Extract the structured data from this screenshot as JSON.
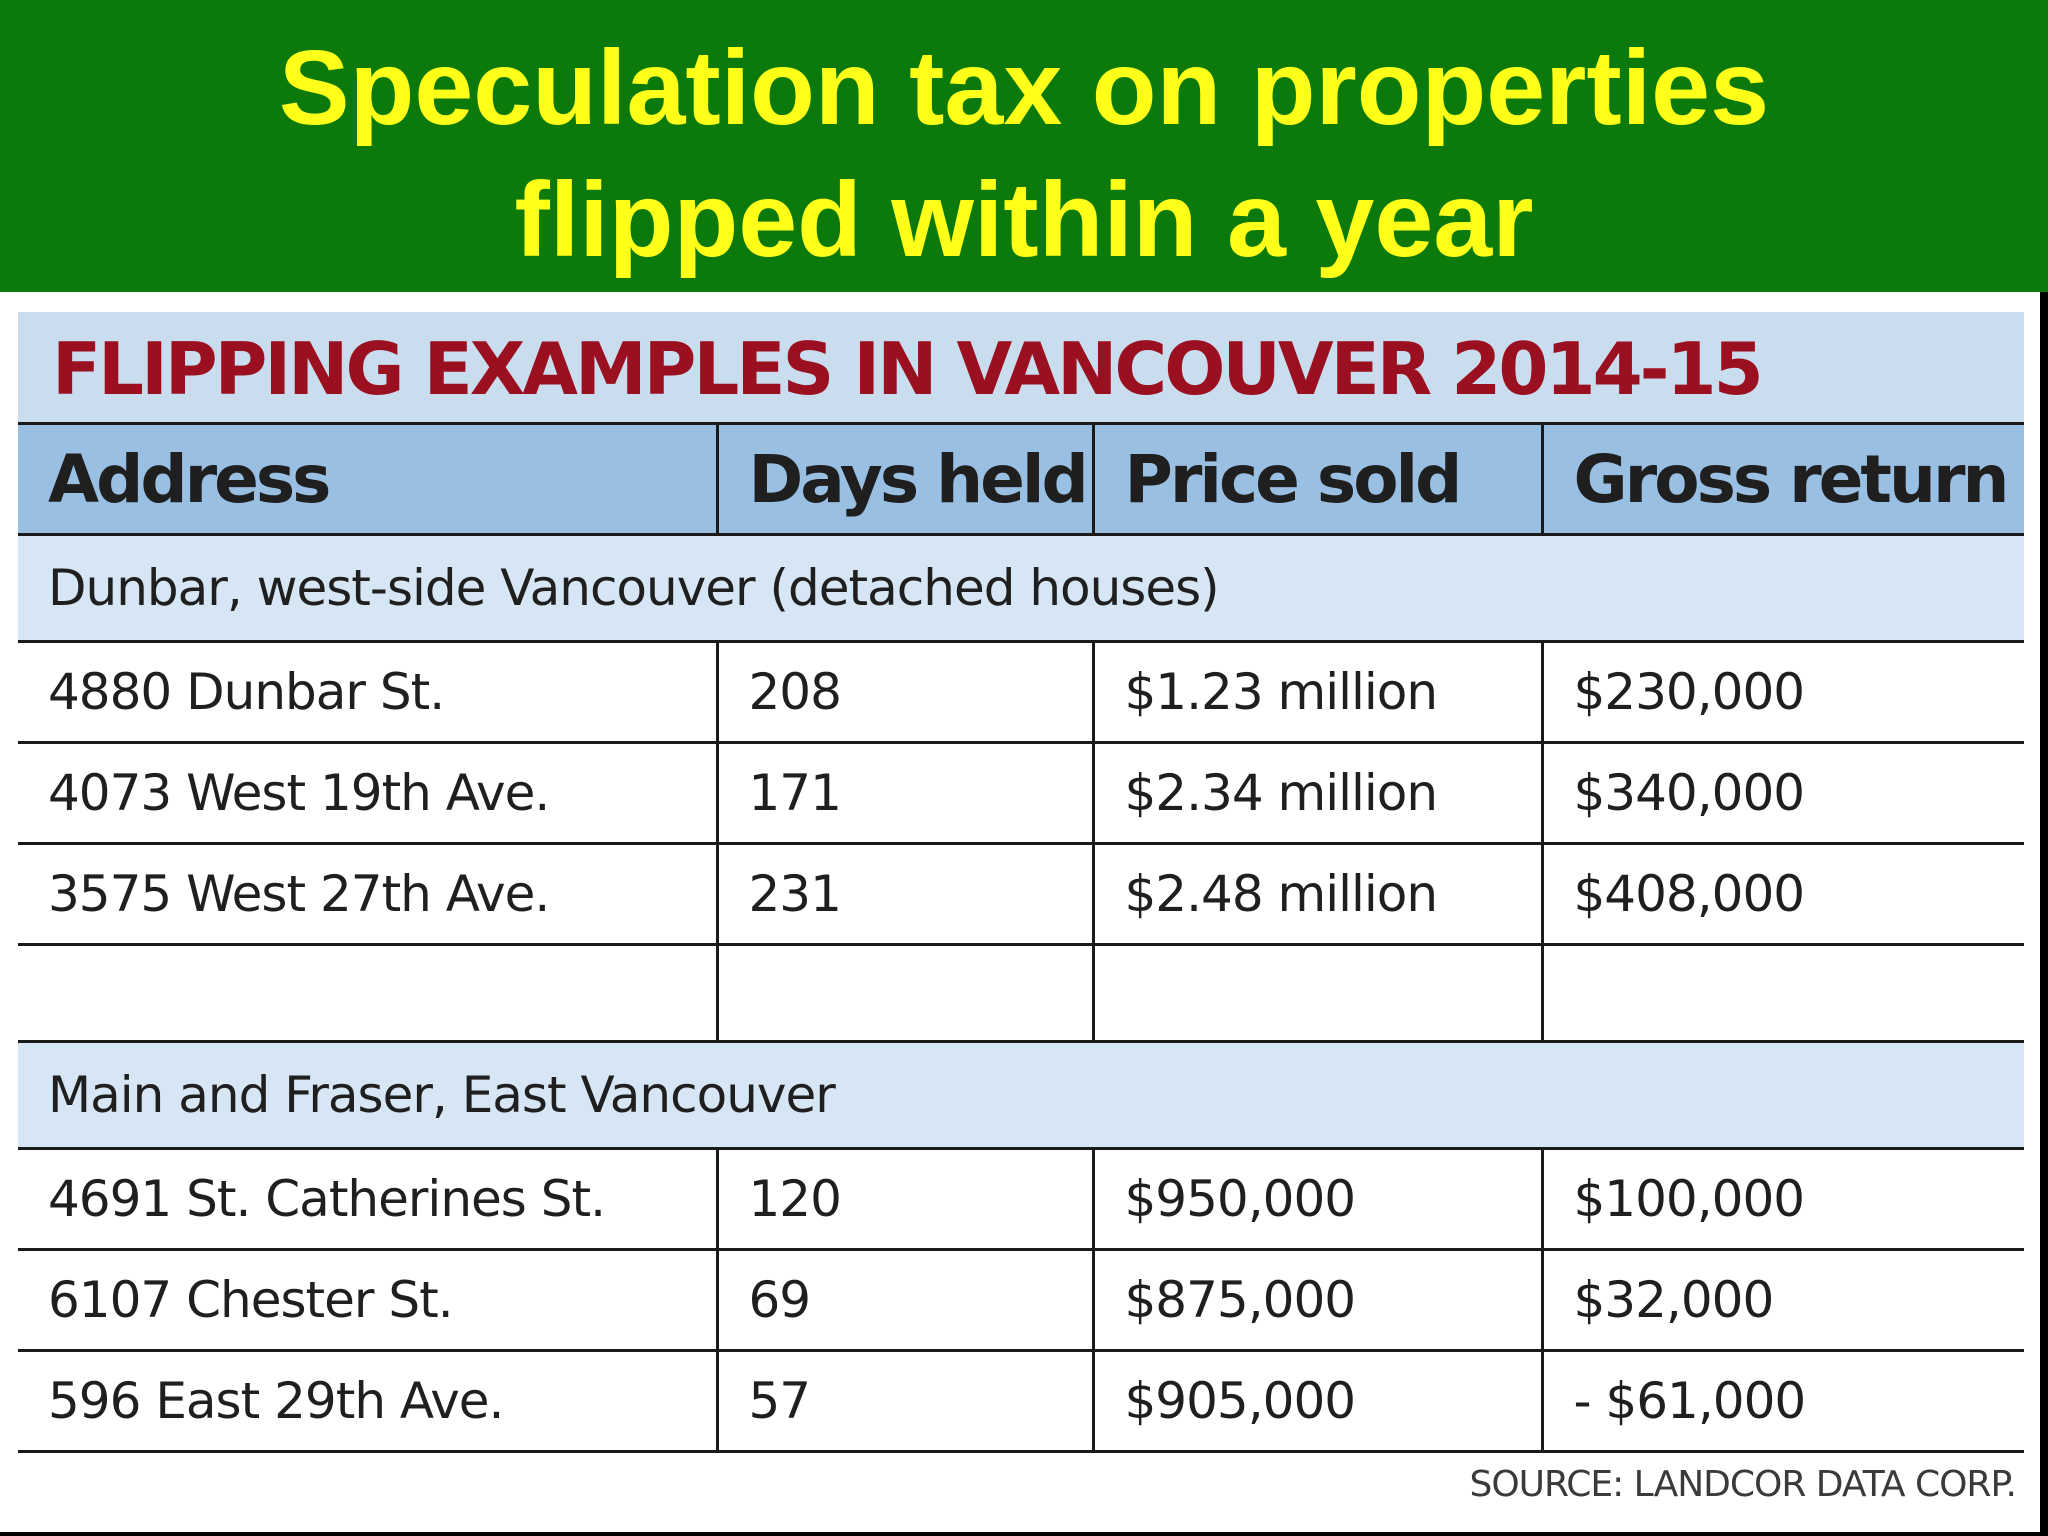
{
  "banner": {
    "line1": "Speculation tax on properties",
    "line2": "flipped within a year"
  },
  "table": {
    "title": "FLIPPING EXAMPLES IN VANCOUVER 2014-15",
    "headers": [
      "Address",
      "Days held",
      "Price sold",
      "Gross return"
    ],
    "groups": [
      {
        "name": "Dunbar, west-side Vancouver (detached houses)",
        "rows": [
          [
            "4880 Dunbar St.",
            "208",
            "$1.23 million",
            "$230,000"
          ],
          [
            "4073 West 19th Ave.",
            "171",
            "$2.34 million",
            "$340,000"
          ],
          [
            "3575 West 27th Ave.",
            "231",
            "$2.48 million",
            "$408,000"
          ]
        ]
      },
      {
        "name": "Main and Fraser, East Vancouver",
        "rows": [
          [
            "4691 St. Catherines St.",
            "120",
            "$950,000",
            "$100,000"
          ],
          [
            "6107 Chester St.",
            "69",
            "$875,000",
            "$32,000"
          ],
          [
            "596 East 29th Ave.",
            "57",
            "$905,000",
            "- $61,000"
          ]
        ]
      }
    ]
  },
  "source": "SOURCE: LANDCOR DATA CORP.",
  "colors": {
    "banner_bg": "#0b7a0b",
    "banner_text": "#ffff1a",
    "title_text": "#9b1020",
    "header_bg": "#99bfe3",
    "title_bg": "#c9ddee",
    "group_bg": "#d6e6f4"
  }
}
